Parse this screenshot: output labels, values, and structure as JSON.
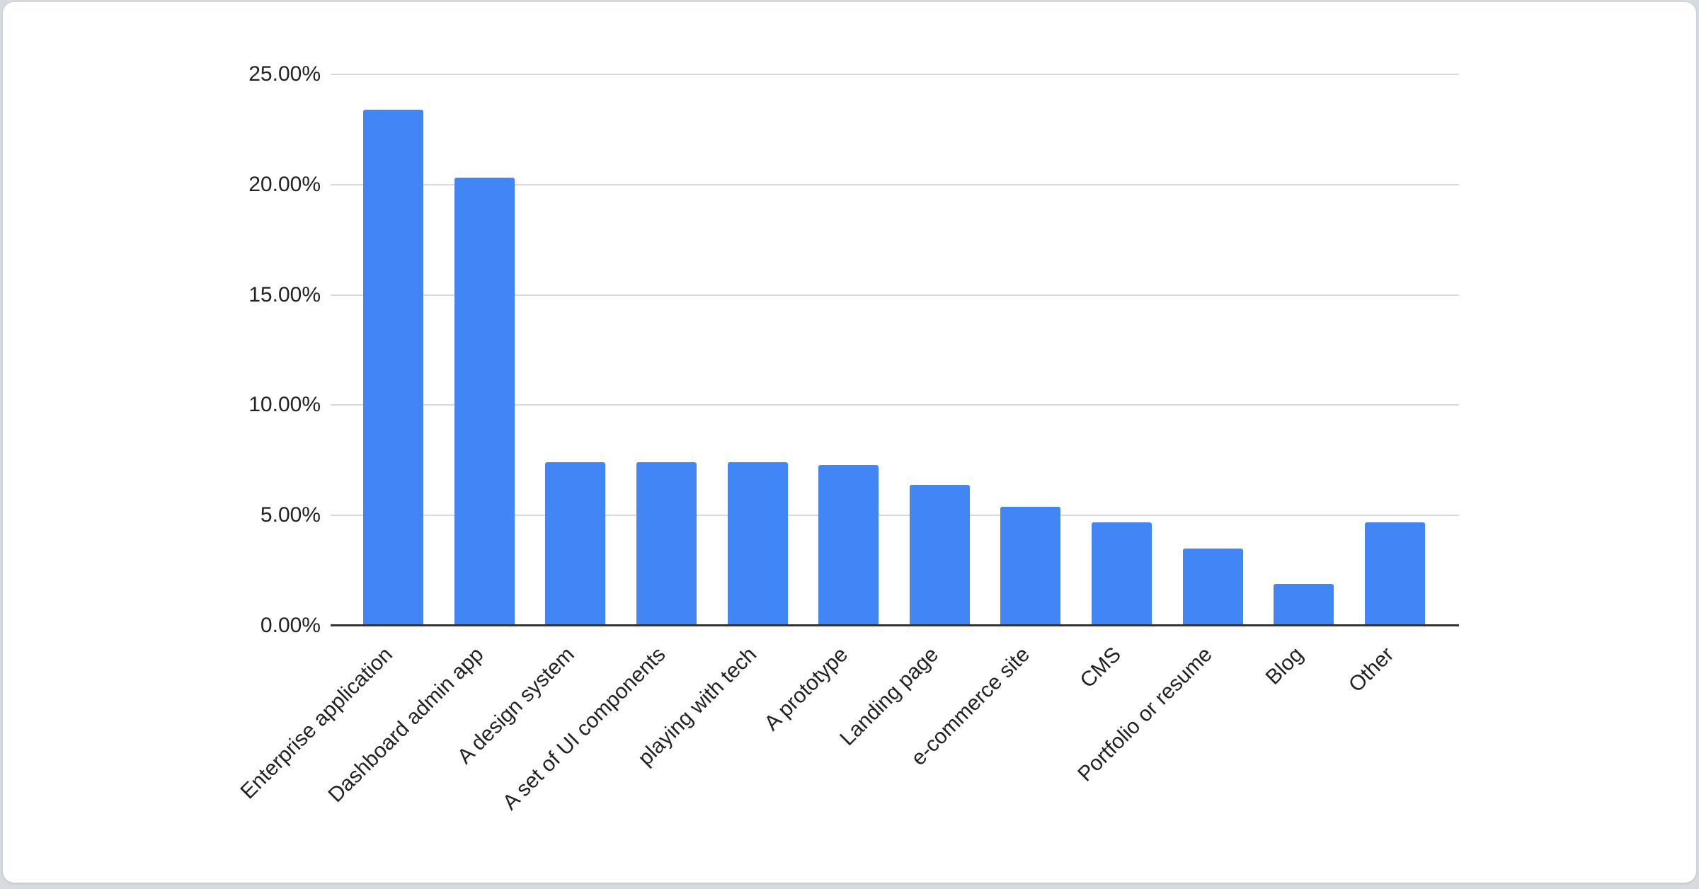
{
  "page": {
    "background_color": "#d7dade",
    "card_background_color": "#ffffff"
  },
  "chart_data": {
    "type": "bar",
    "title": "",
    "xlabel": "",
    "ylabel": "",
    "categories": [
      "Enterprise application",
      "Dashboard admin app",
      "A design system",
      "A set of UI components",
      "playing with tech",
      "A prototype",
      "Landing page",
      "e-commerce site",
      "CMS",
      "Portfolio or resume",
      "Blog",
      "Other"
    ],
    "values": [
      23.4,
      20.3,
      7.4,
      7.4,
      7.4,
      7.3,
      6.4,
      5.4,
      4.7,
      3.5,
      1.9,
      4.7
    ],
    "unit": "%",
    "ylim": [
      0,
      25
    ],
    "ytick_values": [
      0,
      5,
      10,
      15,
      20,
      25
    ],
    "ytick_labels": [
      "0.00%",
      "5.00%",
      "10.00%",
      "15.00%",
      "20.00%",
      "25.00%"
    ],
    "grid": true,
    "legend_position": "none",
    "bar_color": "#4285F4",
    "gridline_color": "#d9d9d9",
    "axis_line_color": "#333333",
    "label_color": "#222222"
  }
}
